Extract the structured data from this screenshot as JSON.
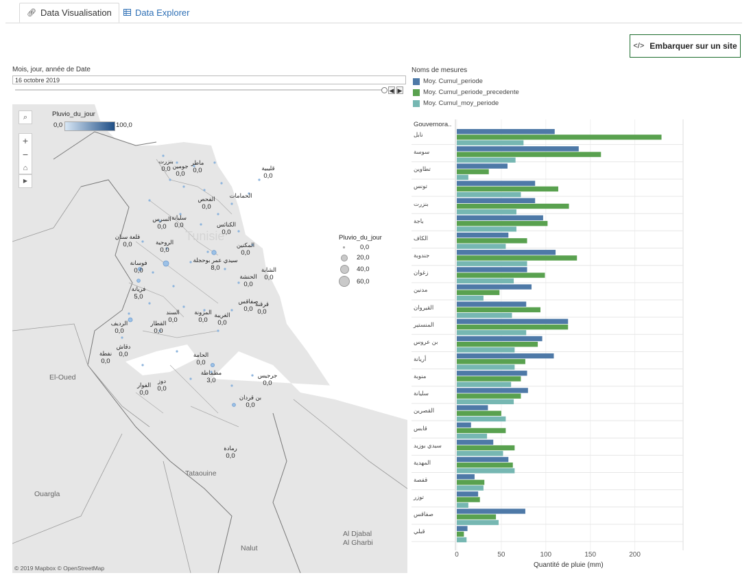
{
  "tabs": [
    {
      "label": "Data Visualisation",
      "icon": "link-icon"
    },
    {
      "label": "Data Explorer",
      "icon": "table-icon"
    }
  ],
  "embed_button": {
    "label": "Embarquer sur un site",
    "icon": "code-icon"
  },
  "date_filter": {
    "label": "Mois, jour, année de Date",
    "value": "16 octobre 2019",
    "prev": "◀",
    "next": "▶"
  },
  "legend": {
    "title": "Noms de mesures",
    "items": [
      {
        "label": "Moy. Cumul_periode",
        "color": "#4e79a7"
      },
      {
        "label": "Moy. Cumul_periode_precedente",
        "color": "#59a14f"
      },
      {
        "label": "Moy. Cumul_moy_periode",
        "color": "#76b7b2"
      }
    ]
  },
  "map": {
    "color_legend": {
      "title": "Pluvio_du_jour",
      "min": "0,0",
      "max": "100,0"
    },
    "size_legend": {
      "title": "Pluvio_du_jour",
      "items": [
        "0,0",
        "20,0",
        "40,0",
        "60,0"
      ]
    },
    "zoom_in": "+",
    "zoom_out": "−",
    "country_label": "Tunisie",
    "regions": [
      "El-Oued",
      "Ouargla",
      "Tataouine",
      "Nalut",
      "Al Djabal",
      "Al Gharbi"
    ],
    "copyright": "© 2019 Mapbox  © OpenStreetMap",
    "places": [
      {
        "name": "بنزرت",
        "value": "0,0"
      },
      {
        "name": "جومين",
        "value": "0,0"
      },
      {
        "name": "ماطر",
        "value": "0,0"
      },
      {
        "name": "قليبية",
        "value": "0,0"
      },
      {
        "name": "الفحص",
        "value": "0,0"
      },
      {
        "name": "الحمامات",
        "value": ""
      },
      {
        "name": "السرس",
        "value": "0,0"
      },
      {
        "name": "سليانة",
        "value": "0,0"
      },
      {
        "name": "الكنائس",
        "value": "0,0"
      },
      {
        "name": "قلعة سنان",
        "value": "0,0"
      },
      {
        "name": "الروحية",
        "value": "0,0"
      },
      {
        "name": "المكنين",
        "value": "0,0"
      },
      {
        "name": "سيدي عمر بوحجلة",
        "value": "8,0"
      },
      {
        "name": "فوسانة",
        "value": "0,0"
      },
      {
        "name": "الشابة",
        "value": "0,0"
      },
      {
        "name": "الحنشة",
        "value": "0,0"
      },
      {
        "name": "فريانة",
        "value": "5,0"
      },
      {
        "name": "صفاقس",
        "value": "0,0"
      },
      {
        "name": "قرقنة",
        "value": "0,0"
      },
      {
        "name": "السند",
        "value": "0,0"
      },
      {
        "name": "المزونة",
        "value": "0,0"
      },
      {
        "name": "الغريبة",
        "value": "0,0"
      },
      {
        "name": "الرديف",
        "value": "0,0"
      },
      {
        "name": "القطار",
        "value": "0,0"
      },
      {
        "name": "دقاش",
        "value": "0,0"
      },
      {
        "name": "نفطة",
        "value": "0,0"
      },
      {
        "name": "الحامة",
        "value": "0,0"
      },
      {
        "name": "مطماطة",
        "value": "3,0"
      },
      {
        "name": "جرجيس",
        "value": "0,0"
      },
      {
        "name": "دوز",
        "value": "0,0"
      },
      {
        "name": "الفوار",
        "value": "0,0"
      },
      {
        "name": "بن قردان",
        "value": "0,0"
      },
      {
        "name": "رمادة",
        "value": "0,0"
      }
    ]
  },
  "chart_data": {
    "type": "bar",
    "orientation": "horizontal",
    "header": "Gouvernora..",
    "xlabel": "Quantité de pluie (mm)",
    "xlim": [
      0,
      245
    ],
    "xticks": [
      0,
      50,
      100,
      150,
      200
    ],
    "categories": [
      "نابل",
      "سوسة",
      "تطاوين",
      "تونس",
      "بنزرت",
      "باجة",
      "الكاف",
      "جندوبة",
      "زغوان",
      "مدنين",
      "القيروان",
      "المنستير",
      "بن عروس",
      "أريانة",
      "منوبة",
      "سليانة",
      "القصرين",
      "قابس",
      "سيدي بوزيد",
      "المهدية",
      "قفصة",
      "توزر",
      "صفاقس",
      "قبلي"
    ],
    "series": [
      {
        "name": "Moy. Cumul_periode",
        "color": "#4e79a7",
        "values": [
          110,
          137,
          57,
          88,
          88,
          97,
          58,
          111,
          79,
          84,
          78,
          125,
          96,
          109,
          79,
          80,
          35,
          16,
          41,
          58,
          20,
          24,
          77,
          12
        ]
      },
      {
        "name": "Moy. Cumul_periode_precedente",
        "color": "#59a14f",
        "values": [
          230,
          162,
          36,
          114,
          126,
          102,
          79,
          135,
          99,
          48,
          94,
          125,
          91,
          77,
          72,
          72,
          50,
          55,
          65,
          63,
          31,
          26,
          44,
          8
        ]
      },
      {
        "name": "Moy. Cumul_moy_periode",
        "color": "#76b7b2",
        "values": [
          75,
          66,
          13,
          72,
          67,
          67,
          55,
          79,
          64,
          30,
          62,
          78,
          65,
          65,
          61,
          64,
          55,
          34,
          52,
          65,
          30,
          13,
          47,
          11
        ]
      }
    ]
  }
}
